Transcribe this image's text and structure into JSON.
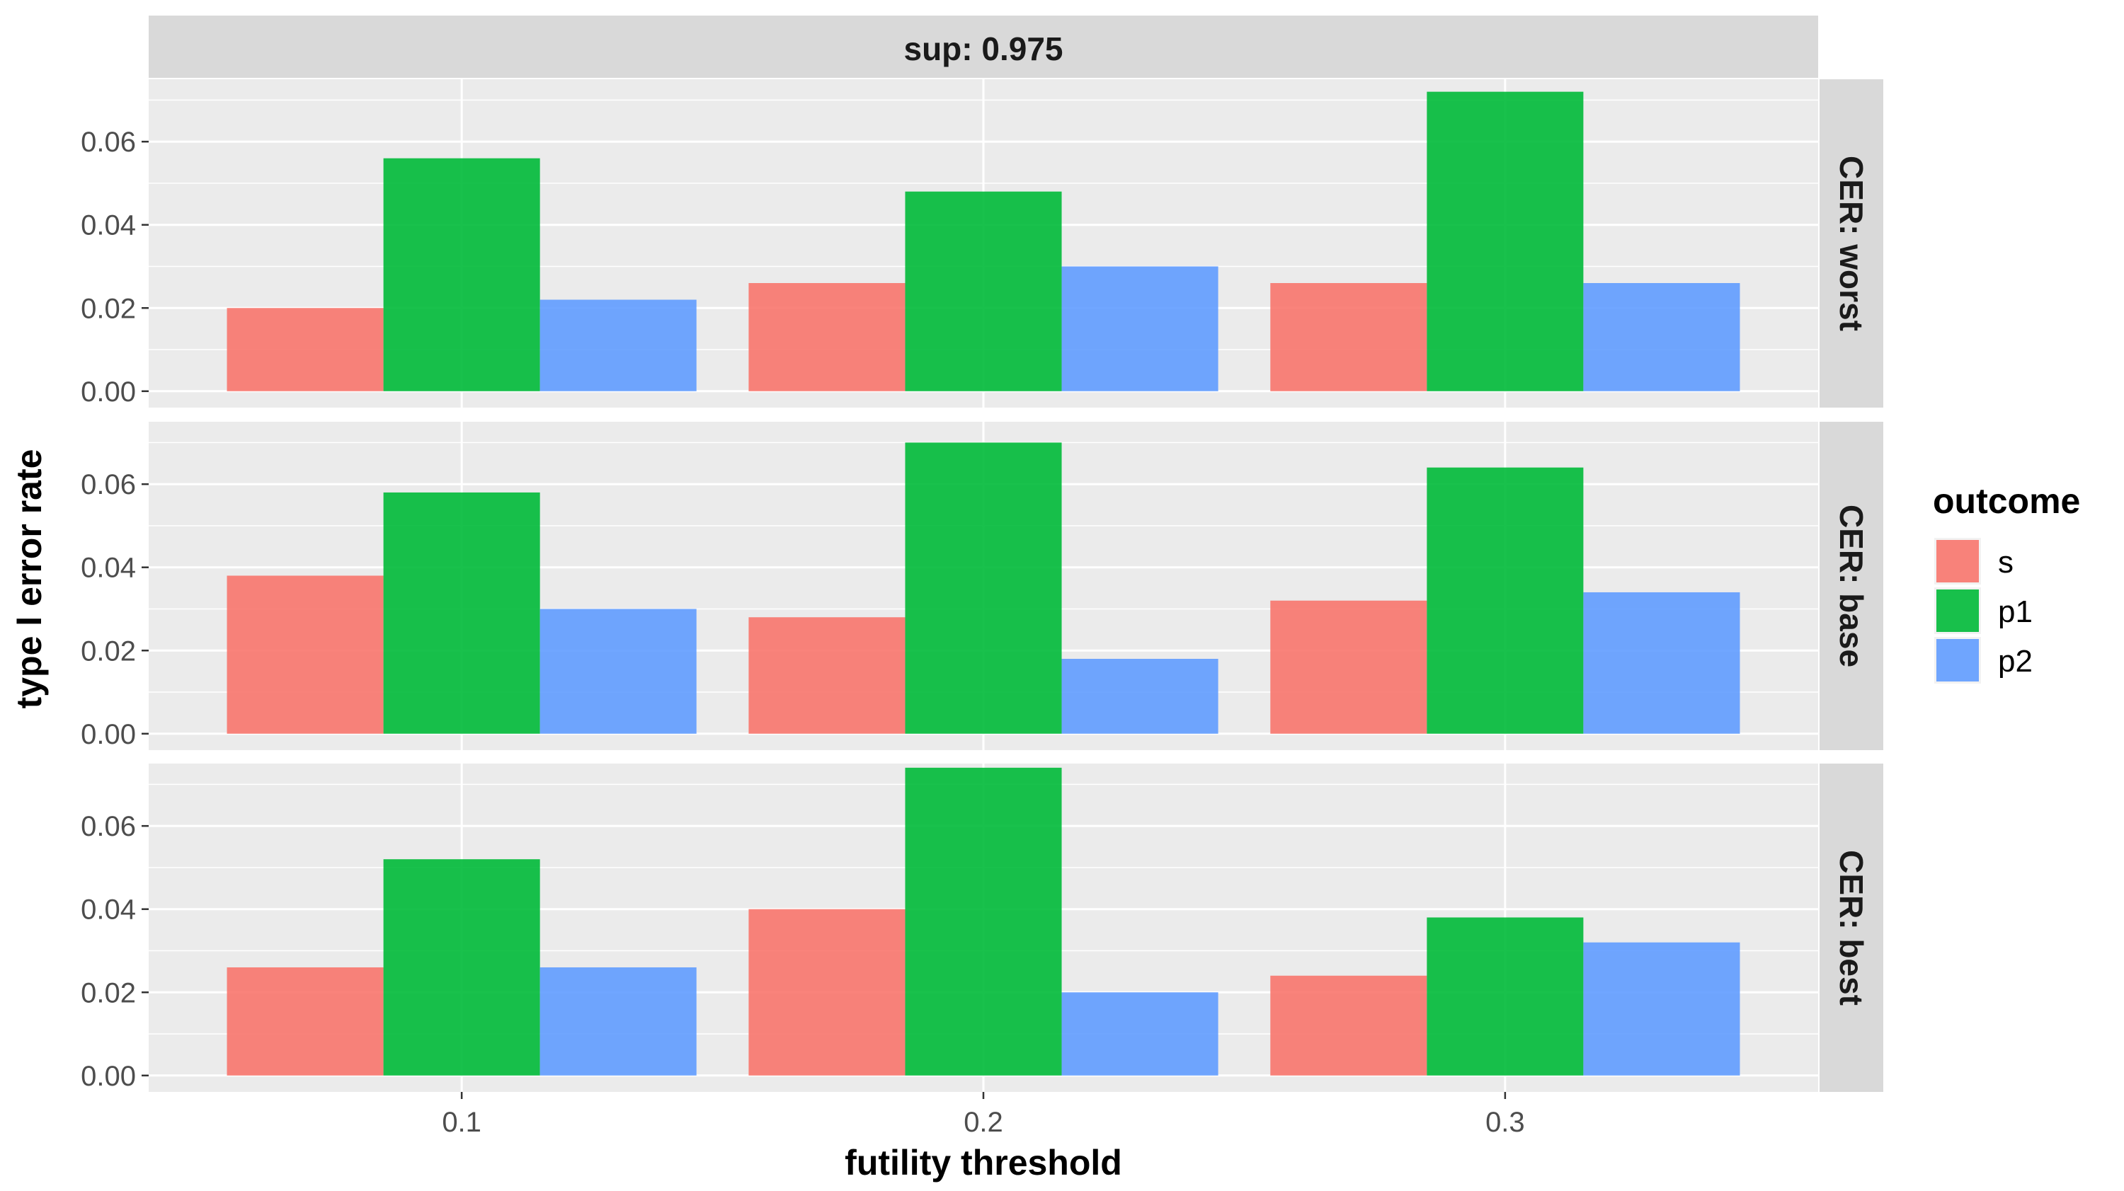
{
  "chart_data": {
    "type": "bar",
    "facet_column_title": "sup: 0.975",
    "xlabel": "futility threshold",
    "ylabel": "type I error rate",
    "categories": [
      "0.1",
      "0.2",
      "0.3"
    ],
    "ylim": [
      0,
      0.075
    ],
    "yticks": [
      "0.00",
      "0.02",
      "0.04",
      "0.06"
    ],
    "grid": true,
    "legend": {
      "title": "outcome",
      "position": "right",
      "entries": [
        {
          "name": "s",
          "color": "#F8766D"
        },
        {
          "name": "p1",
          "color": "#00BA38"
        },
        {
          "name": "p2",
          "color": "#619CFF"
        }
      ]
    },
    "panels": [
      {
        "label": "CER: worst",
        "series": [
          {
            "name": "s",
            "values": [
              0.02,
              0.026,
              0.026
            ]
          },
          {
            "name": "p1",
            "values": [
              0.056,
              0.048,
              0.072
            ]
          },
          {
            "name": "p2",
            "values": [
              0.022,
              0.03,
              0.026
            ]
          }
        ]
      },
      {
        "label": "CER: base",
        "series": [
          {
            "name": "s",
            "values": [
              0.038,
              0.028,
              0.032
            ]
          },
          {
            "name": "p1",
            "values": [
              0.058,
              0.07,
              0.064
            ]
          },
          {
            "name": "p2",
            "values": [
              0.03,
              0.018,
              0.034
            ]
          }
        ]
      },
      {
        "label": "CER: best",
        "series": [
          {
            "name": "s",
            "values": [
              0.026,
              0.04,
              0.024
            ]
          },
          {
            "name": "p1",
            "values": [
              0.052,
              0.074,
              0.038
            ]
          },
          {
            "name": "p2",
            "values": [
              0.026,
              0.02,
              0.032
            ]
          }
        ]
      }
    ]
  }
}
